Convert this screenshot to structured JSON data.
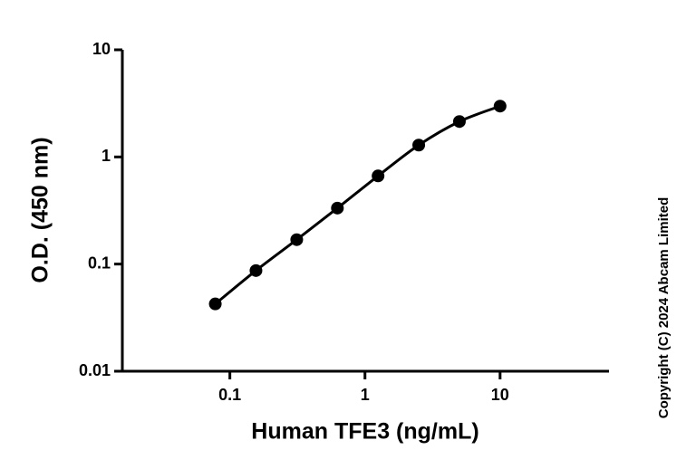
{
  "chart_data": {
    "type": "scatter",
    "log_x": true,
    "log_y": true,
    "x_label": "Human TFE3 (ng/mL)",
    "y_label": "O.D. (450 nm)",
    "copyright": "Copyright (C) 2024 Abcam Limited",
    "x": [
      0.078,
      0.156,
      0.3125,
      0.625,
      1.25,
      2.5,
      5,
      10
    ],
    "series": [
      {
        "color": "#000000",
        "values": [
          0.0425,
          0.087,
          0.169,
          0.333,
          0.665,
          1.29,
          2.14,
          2.98
        ]
      }
    ],
    "xlim": [
      0.016,
      64
    ],
    "xticks": [
      0.1,
      1,
      10
    ],
    "ylim": [
      0.01,
      10
    ],
    "yticks": [
      0.01,
      0.1,
      1,
      10
    ]
  }
}
